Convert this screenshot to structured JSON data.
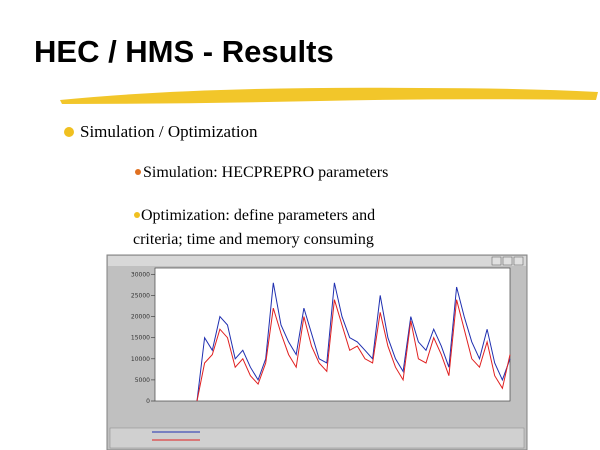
{
  "slide": {
    "title": "HEC / HMS - Results",
    "bullet": "Simulation  / Optimization",
    "sub_bullets": [
      "Simulation: HECPREPRO parameters",
      [
        "Optimization: define parameters and",
        "criteria; time and memory consuming"
      ]
    ]
  },
  "figure": {
    "ylim": [
      0,
      31500
    ],
    "yticks": [
      0,
      5000,
      10000,
      15000,
      20000,
      25000,
      30000
    ],
    "series": [
      {
        "color": "#1f2fb0",
        "values": [
          0,
          15000,
          12000,
          20000,
          18000,
          10000,
          12000,
          8000,
          5000,
          10000,
          28000,
          18000,
          14000,
          11000,
          22000,
          16000,
          10000,
          9000,
          28000,
          20000,
          15000,
          14000,
          12000,
          10000,
          25000,
          15000,
          10000,
          7000,
          20000,
          14000,
          12000,
          17000,
          13000,
          8000,
          27000,
          20000,
          14000,
          10000,
          17000,
          9000,
          5000,
          10000
        ]
      },
      {
        "color": "#e02020",
        "values": [
          0,
          9000,
          11000,
          17000,
          15000,
          8000,
          10000,
          6000,
          4000,
          9000,
          22000,
          16000,
          11000,
          8000,
          20000,
          13000,
          9000,
          7000,
          24000,
          18000,
          12000,
          13000,
          10000,
          9000,
          21000,
          13000,
          8000,
          5000,
          19000,
          10000,
          9000,
          15000,
          11000,
          6000,
          24000,
          17000,
          10000,
          8000,
          14000,
          6000,
          3000,
          11000
        ]
      }
    ]
  }
}
